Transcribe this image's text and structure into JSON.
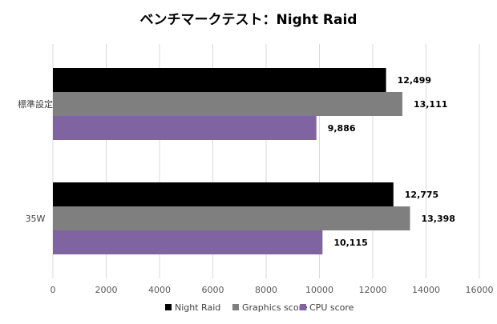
{
  "chart_data": {
    "type": "bar",
    "orientation": "horizontal",
    "title": "ベンチマークテスト：Night Raid",
    "categories": [
      "標準設定",
      "35W"
    ],
    "series": [
      {
        "name": "Night Raid",
        "color": "#000000",
        "values": [
          12499,
          12775
        ],
        "labels": [
          "12,499",
          "12,775"
        ]
      },
      {
        "name": "Graphics score",
        "color": "#7f7f7f",
        "values": [
          13111,
          13398
        ],
        "labels": [
          "13,111",
          "13,398"
        ]
      },
      {
        "name": "CPU score",
        "color": "#8064a2",
        "values": [
          9886,
          10115
        ],
        "labels": [
          "9,886",
          "10,115"
        ]
      }
    ],
    "xlim": [
      0,
      16000
    ],
    "xticks": [
      "0",
      "2000",
      "4000",
      "6000",
      "8000",
      "10000",
      "12000",
      "14000",
      "16000"
    ],
    "xlabel": "",
    "ylabel": "",
    "grid": "vertical",
    "legend_position": "bottom"
  }
}
